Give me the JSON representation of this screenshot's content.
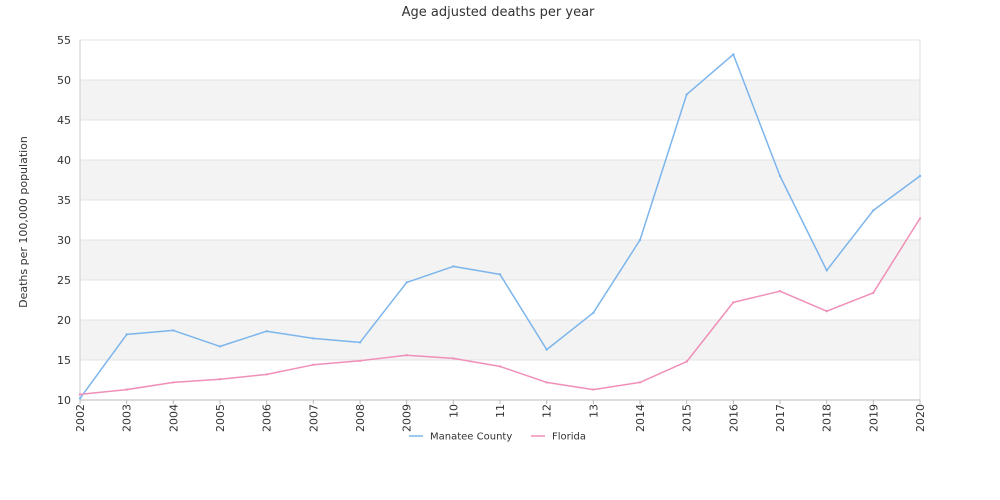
{
  "chart_data": {
    "type": "line",
    "title": "Age adjusted deaths per year",
    "xlabel": "",
    "ylabel": "Deaths per 100,000 population",
    "categories": [
      "2002",
      "2003",
      "2004",
      "2005",
      "2006",
      "2007",
      "2008",
      "2009",
      "10",
      "11",
      "12",
      "13",
      "2014",
      "2015",
      "2016",
      "2017",
      "2018",
      "2019",
      "2020"
    ],
    "series": [
      {
        "name": "Manatee County",
        "color": "#7cb5ec",
        "values": [
          10.2,
          18.2,
          18.7,
          16.7,
          18.6,
          17.7,
          17.2,
          24.7,
          26.7,
          25.7,
          16.3,
          20.9,
          30.0,
          48.2,
          53.2,
          38.0,
          26.2,
          33.7,
          38.0
        ]
      },
      {
        "name": "Florida",
        "color": "#f08fb8",
        "values": [
          10.7,
          11.3,
          12.2,
          12.6,
          13.2,
          14.4,
          14.9,
          15.6,
          15.2,
          14.2,
          12.2,
          11.3,
          12.2,
          14.8,
          22.2,
          23.6,
          21.1,
          23.4,
          32.7
        ]
      }
    ],
    "ylim": [
      10,
      55
    ],
    "yticks": [
      "10",
      "15",
      "20",
      "25",
      "30",
      "35",
      "40",
      "45",
      "50",
      "55"
    ],
    "grid": true,
    "grid_bands": true,
    "legend": "bottom-center"
  }
}
